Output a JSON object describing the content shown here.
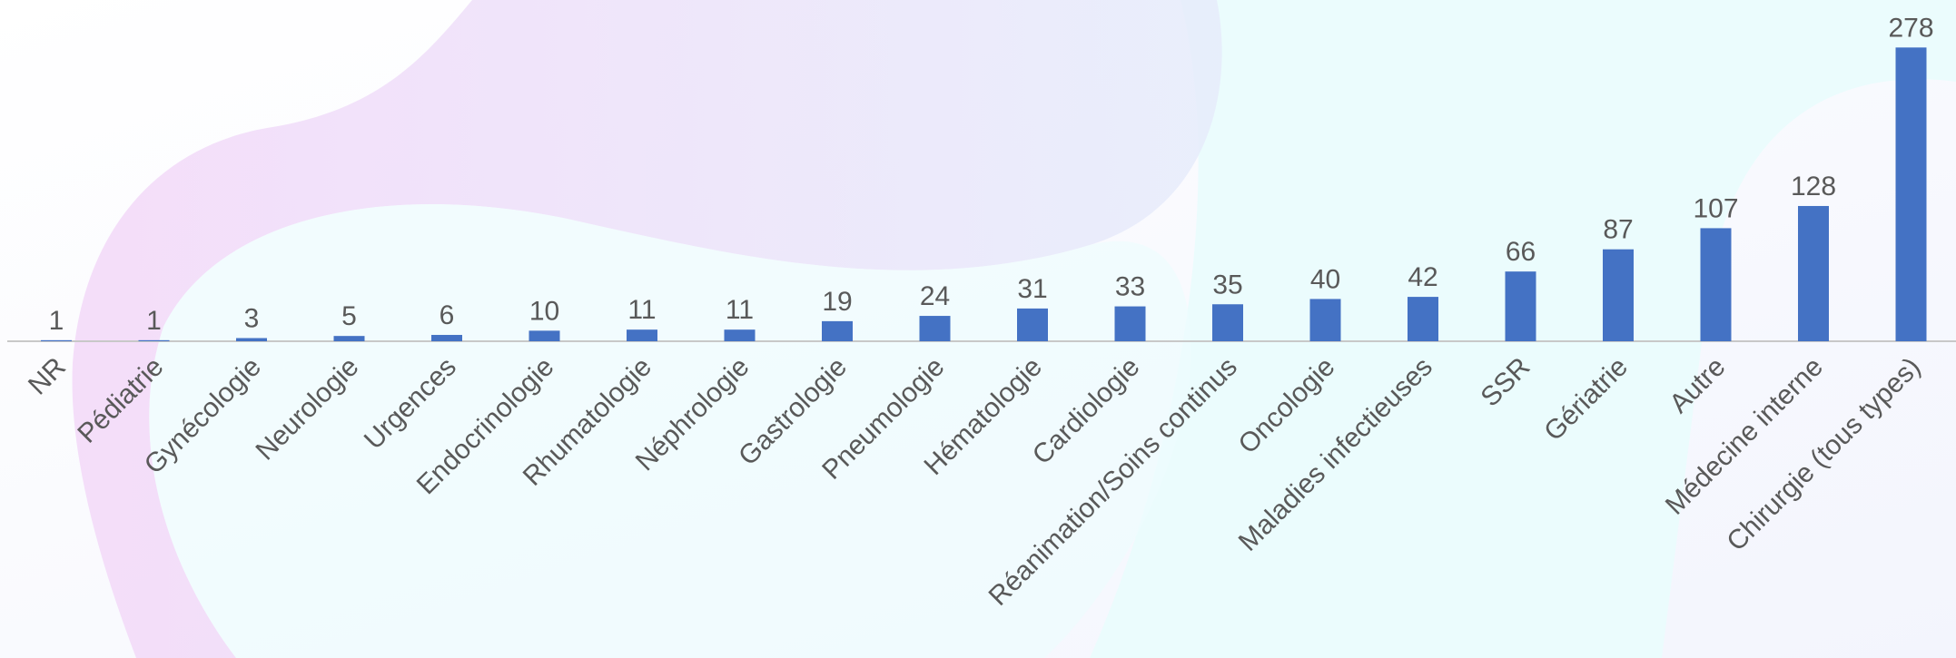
{
  "chart_data": {
    "type": "bar",
    "categories": [
      "NR",
      "Pédiatrie",
      "Gynécologie",
      "Neurologie",
      "Urgences",
      "Endocrinologie",
      "Rhumatologie",
      "Néphrologie",
      "Gastrologie",
      "Pneumologie",
      "Hématologie",
      "Cardiologie",
      "Réanimation/Soins continus",
      "Oncologie",
      "Maladies infectieuses",
      "SSR",
      "Gériatrie",
      "Autre",
      "Médecine interne",
      "Chirurgie (tous types)"
    ],
    "values": [
      1,
      1,
      3,
      5,
      6,
      10,
      11,
      11,
      19,
      24,
      31,
      33,
      35,
      40,
      42,
      66,
      87,
      107,
      128,
      278
    ],
    "color": "#4472c4",
    "ylim": [
      0,
      280
    ]
  }
}
